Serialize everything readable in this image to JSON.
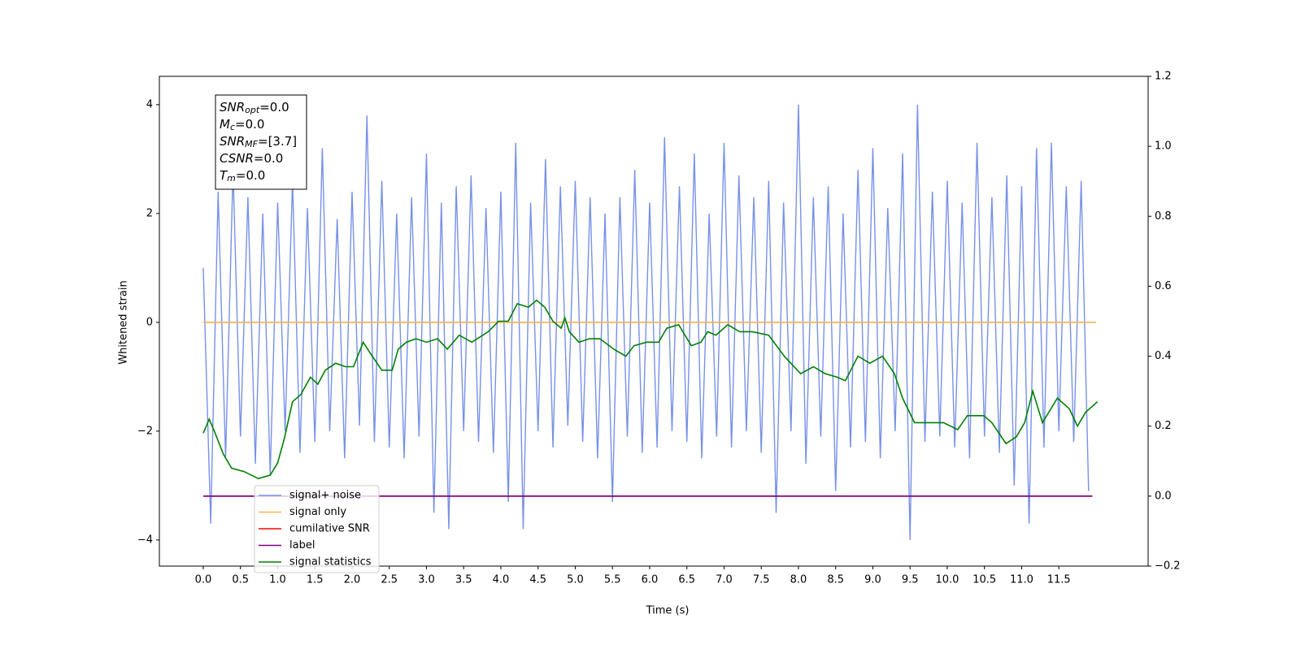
{
  "chart_data": {
    "type": "line",
    "annotation": [
      {
        "main": "SNR",
        "sub": "opt",
        "rest": "=0.0"
      },
      {
        "main": "M",
        "sub": "c",
        "rest": "=0.0"
      },
      {
        "main": "SNR",
        "sub": "MF",
        "rest": "=[3.7]"
      },
      {
        "main": "CSNR",
        "rest": "=0.0"
      },
      {
        "main": "T",
        "sub": "m",
        "rest": "=0.0"
      }
    ],
    "xlabel": "Time (s)",
    "ylabel": "Whitened strain",
    "xlim": [
      -0.59,
      12.7
    ],
    "ylim": [
      -4.48,
      4.52
    ],
    "y2lim": [
      -0.2,
      1.2
    ],
    "xticks": [
      {
        "value": 0,
        "label": "0.0"
      },
      0.5,
      {
        "value": 1,
        "label": "1.0"
      },
      1.5,
      {
        "value": 2,
        "label": "2.0"
      },
      2.5,
      {
        "value": 3,
        "label": "3.0"
      },
      3.5,
      {
        "value": 4,
        "label": "4.0"
      },
      4.5,
      {
        "value": 5,
        "label": "5.0"
      },
      5.5,
      {
        "value": 6,
        "label": "6.0"
      },
      6.5,
      {
        "value": 7,
        "label": "7.0"
      },
      7.5,
      {
        "value": 8,
        "label": "8.0"
      },
      8.5,
      {
        "value": 9,
        "label": "9.0"
      },
      9.5,
      {
        "value": 10,
        "label": "10.0"
      },
      10.5,
      {
        "value": 11,
        "label": "11.0"
      },
      11.5
    ],
    "yticks": [
      {
        "value": -4,
        "label": "−4"
      },
      {
        "value": -2,
        "label": "−2"
      },
      0,
      2,
      4
    ],
    "y2ticks": [
      {
        "value": -0.2,
        "label": "−0.2"
      },
      {
        "value": 0,
        "label": "0.0"
      },
      0.2,
      0.4,
      0.6,
      0.8,
      {
        "value": 1,
        "label": "1.0"
      },
      1.2
    ],
    "legend": "lower left",
    "series": [
      {
        "name": "signal+ noise",
        "color": "#7791e8",
        "x": [
          0,
          0.1,
          0.2,
          0.3,
          0.4,
          0.5,
          0.6,
          0.7,
          0.8,
          0.9,
          1,
          1.1,
          1.2,
          1.3,
          1.4,
          1.5,
          1.6,
          1.7,
          1.8,
          1.9,
          2,
          2.1,
          2.2,
          2.3,
          2.4,
          2.5,
          2.6,
          2.7,
          2.8,
          2.9,
          3,
          3.1,
          3.2,
          3.3,
          3.4,
          3.5,
          3.6,
          3.7,
          3.8,
          3.9,
          4,
          4.1,
          4.2,
          4.3,
          4.4,
          4.5,
          4.6,
          4.7,
          4.8,
          4.9,
          5,
          5.1,
          5.2,
          5.3,
          5.4,
          5.5,
          5.6,
          5.7,
          5.8,
          5.9,
          6,
          6.1,
          6.2,
          6.3,
          6.4,
          6.5,
          6.6,
          6.7,
          6.8,
          6.9,
          7,
          7.1,
          7.2,
          7.3,
          7.4,
          7.5,
          7.6,
          7.7,
          7.8,
          7.9,
          8,
          8.1,
          8.2,
          8.3,
          8.4,
          8.5,
          8.6,
          8.7,
          8.8,
          8.9,
          9,
          9.1,
          9.2,
          9.3,
          9.4,
          9.5,
          9.6,
          9.7,
          9.8,
          9.9,
          10,
          10.1,
          10.2,
          10.3,
          10.4,
          10.5,
          10.6,
          10.7,
          10.8,
          10.9,
          11,
          11.1,
          11.2,
          11.3,
          11.4,
          11.5,
          11.6,
          11.7,
          11.8,
          11.9
        ],
        "values": [
          1.0,
          -3.7,
          2.4,
          -2.5,
          2.8,
          -2.1,
          2.3,
          -2.6,
          2.0,
          -2.8,
          2.2,
          -2.0,
          2.6,
          -2.4,
          2.1,
          -2.2,
          3.2,
          -2.0,
          1.9,
          -2.5,
          2.4,
          -1.9,
          3.8,
          -2.2,
          2.6,
          -2.3,
          2.0,
          -2.5,
          2.3,
          -2.1,
          3.1,
          -3.5,
          2.2,
          -3.8,
          2.5,
          -2.0,
          2.7,
          -2.2,
          2.1,
          -2.4,
          2.4,
          -3.3,
          3.3,
          -3.8,
          2.2,
          -2.0,
          3.0,
          -2.3,
          2.5,
          -1.9,
          2.6,
          -2.2,
          2.3,
          -2.5,
          2.0,
          -3.3,
          2.3,
          -2.1,
          2.8,
          -2.4,
          2.2,
          -2.3,
          3.4,
          -2.0,
          2.5,
          -2.2,
          3.1,
          -2.5,
          2.0,
          -2.1,
          3.3,
          -2.3,
          2.7,
          -2.0,
          2.3,
          -2.4,
          2.6,
          -3.5,
          2.2,
          -2.0,
          4.0,
          -2.6,
          2.3,
          -2.1,
          2.5,
          -3.1,
          2.0,
          -2.3,
          2.8,
          -2.2,
          3.2,
          -2.5,
          2.1,
          -2.0,
          3.1,
          -4.0,
          4.0,
          -2.2,
          2.4,
          -2.1,
          2.6,
          -2.3,
          2.2,
          -2.5,
          3.3,
          -2.1,
          2.3,
          -2.4,
          2.7,
          -3.0,
          2.5,
          -3.7,
          3.2,
          -2.3,
          3.3,
          -2.0,
          2.5,
          -2.2,
          2.6,
          -3.1
        ]
      },
      {
        "name": "signal only",
        "color": "#ffb04d",
        "x": [
          0,
          12.0
        ],
        "values": [
          0,
          0
        ]
      },
      {
        "name": "cumilative SNR",
        "color": "#ff0000",
        "axis": "y2",
        "x": [
          0,
          11.95
        ],
        "values": [
          0,
          0
        ]
      },
      {
        "name": "label",
        "color": "#800080",
        "axis": "y2",
        "x": [
          0,
          11.95
        ],
        "values": [
          0,
          0
        ]
      },
      {
        "name": "signal statistics",
        "color": "#008000",
        "axis": "y2",
        "x": [
          0,
          0.08,
          0.16,
          0.27,
          0.38,
          0.55,
          0.74,
          0.9,
          1.0,
          1.09,
          1.2,
          1.31,
          1.44,
          1.54,
          1.64,
          1.78,
          1.91,
          2.02,
          2.15,
          2.24,
          2.4,
          2.54,
          2.62,
          2.73,
          2.86,
          3.0,
          3.15,
          3.28,
          3.44,
          3.61,
          3.83,
          3.97,
          4.1,
          4.22,
          4.37,
          4.48,
          4.59,
          4.7,
          4.81,
          4.86,
          4.92,
          5.05,
          5.19,
          5.33,
          5.52,
          5.68,
          5.79,
          5.96,
          6.12,
          6.23,
          6.39,
          6.56,
          6.69,
          6.78,
          6.89,
          7.05,
          7.21,
          7.38,
          7.6,
          7.81,
          8.03,
          8.2,
          8.36,
          8.52,
          8.63,
          8.8,
          8.96,
          9.13,
          9.29,
          9.4,
          9.56,
          9.73,
          9.95,
          10.14,
          10.27,
          10.49,
          10.6,
          10.79,
          10.93,
          11.04,
          11.15,
          11.28,
          11.48,
          11.64,
          11.75,
          11.86,
          12.02
        ],
        "values": [
          0.18,
          0.22,
          0.18,
          0.12,
          0.08,
          0.07,
          0.05,
          0.06,
          0.095,
          0.165,
          0.27,
          0.29,
          0.34,
          0.32,
          0.36,
          0.38,
          0.37,
          0.37,
          0.44,
          0.41,
          0.36,
          0.36,
          0.42,
          0.44,
          0.45,
          0.44,
          0.45,
          0.42,
          0.46,
          0.44,
          0.47,
          0.5,
          0.5,
          0.55,
          0.54,
          0.56,
          0.54,
          0.5,
          0.48,
          0.51,
          0.47,
          0.44,
          0.45,
          0.45,
          0.42,
          0.4,
          0.43,
          0.44,
          0.44,
          0.48,
          0.49,
          0.43,
          0.44,
          0.47,
          0.46,
          0.49,
          0.47,
          0.47,
          0.46,
          0.4,
          0.35,
          0.37,
          0.35,
          0.34,
          0.33,
          0.4,
          0.38,
          0.4,
          0.35,
          0.28,
          0.21,
          0.21,
          0.21,
          0.19,
          0.23,
          0.23,
          0.21,
          0.15,
          0.17,
          0.21,
          0.3,
          0.21,
          0.28,
          0.25,
          0.2,
          0.24,
          0.27
        ]
      }
    ]
  }
}
